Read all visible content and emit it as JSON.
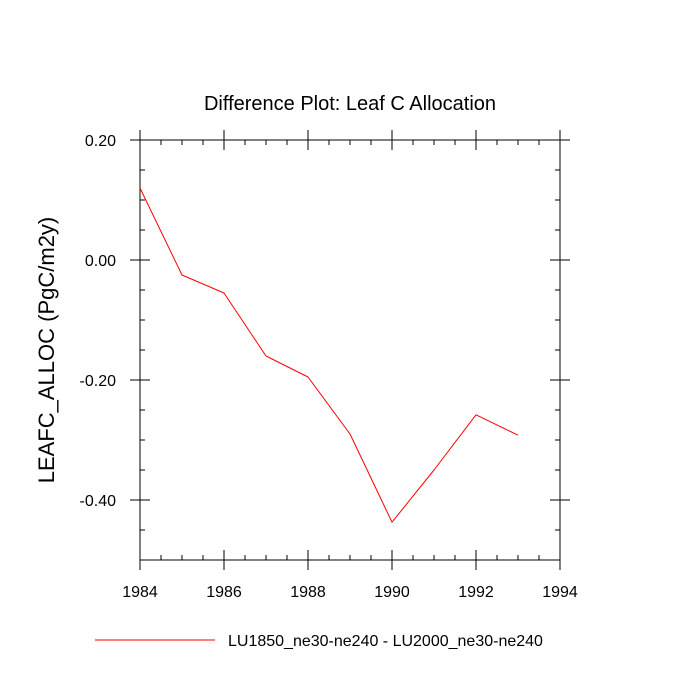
{
  "chart_data": {
    "type": "line",
    "title": "Difference Plot: Leaf C Allocation",
    "xlabel": "",
    "ylabel": "LEAFC_ALLOC  (PgC/m2y)",
    "xlim": [
      1984,
      1994
    ],
    "ylim": [
      -0.5,
      0.2
    ],
    "x_ticks": [
      1984,
      1986,
      1988,
      1990,
      1992,
      1994
    ],
    "x_tick_labels": [
      "1984",
      "1986",
      "1988",
      "1990",
      "1992",
      "1994"
    ],
    "y_ticks": [
      0.2,
      0.0,
      -0.2,
      -0.4
    ],
    "y_tick_labels": [
      "0.20",
      "0.00",
      "-0.20",
      "-0.40"
    ],
    "series": [
      {
        "name": "LU1850_ne30-ne240 - LU2000_ne30-ne240",
        "color": "#ff0000",
        "x": [
          1984,
          1985,
          1986,
          1987,
          1988,
          1989,
          1990,
          1991,
          1992,
          1993
        ],
        "values": [
          0.12,
          -0.025,
          -0.055,
          -0.16,
          -0.195,
          -0.29,
          -0.437,
          -0.35,
          -0.258,
          -0.292
        ]
      }
    ],
    "legend": "bottom",
    "grid": false
  }
}
